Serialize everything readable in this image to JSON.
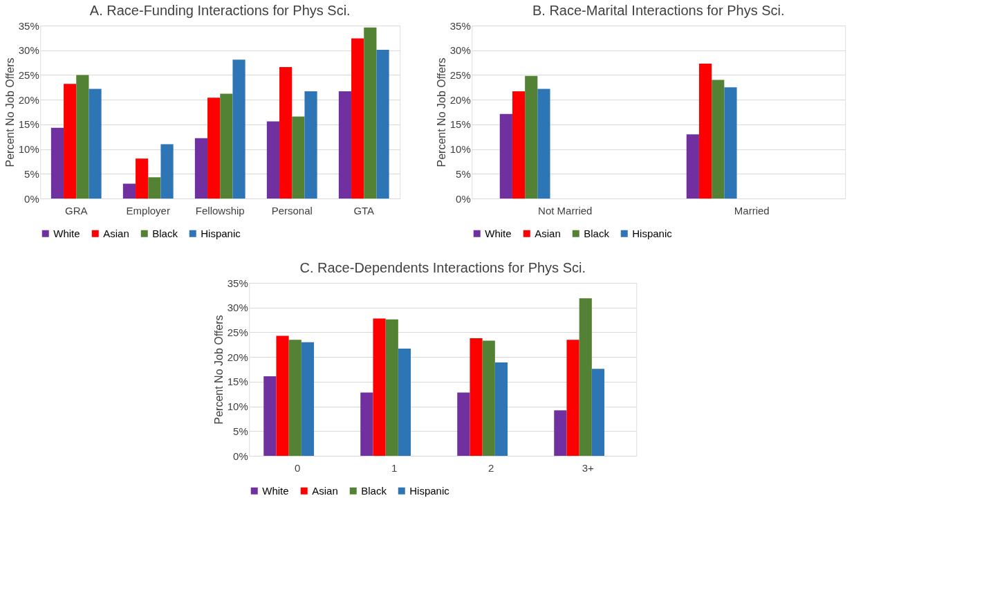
{
  "chart_data": [
    {
      "type": "bar",
      "title": "A. Race-Funding Interactions for Phys Sci.",
      "ylabel": "Percent No Job Offers",
      "categories": [
        "GRA",
        "Employer",
        "Fellowship",
        "Personal",
        "GTA"
      ],
      "series": [
        {
          "name": "White",
          "color": "#7030a0",
          "values": [
            14.3,
            3.0,
            12.2,
            15.6,
            21.7
          ]
        },
        {
          "name": "Asian",
          "color": "#ff0000",
          "values": [
            23.2,
            8.1,
            20.4,
            26.6,
            32.4
          ]
        },
        {
          "name": "Black",
          "color": "#548235",
          "values": [
            25.0,
            4.3,
            21.2,
            16.6,
            34.6
          ]
        },
        {
          "name": "Hispanic",
          "color": "#2e75b6",
          "values": [
            22.2,
            11.0,
            28.1,
            21.7,
            30.1
          ]
        }
      ],
      "ylim": [
        0,
        35
      ],
      "yticks": [
        {
          "value": 0,
          "label": "0%"
        },
        {
          "value": 5,
          "label": "5%"
        },
        {
          "value": 10,
          "label": "10%"
        },
        {
          "value": 15,
          "label": "15%"
        },
        {
          "value": 20,
          "label": "20%"
        },
        {
          "value": 25,
          "label": "25%"
        },
        {
          "value": 30,
          "label": "30%"
        },
        {
          "value": 35,
          "label": "35%"
        }
      ],
      "grid": "y",
      "legend": "bottom"
    },
    {
      "type": "bar",
      "title": "B. Race-Marital Interactions for Phys Sci.",
      "ylabel": "Percent No Job Offers",
      "categories": [
        "Not Married",
        "Married"
      ],
      "series": [
        {
          "name": "White",
          "color": "#7030a0",
          "values": [
            17.1,
            13.0
          ]
        },
        {
          "name": "Asian",
          "color": "#ff0000",
          "values": [
            21.7,
            27.3
          ]
        },
        {
          "name": "Black",
          "color": "#548235",
          "values": [
            24.8,
            24.0
          ]
        },
        {
          "name": "Hispanic",
          "color": "#2e75b6",
          "values": [
            22.2,
            22.5
          ]
        }
      ],
      "ylim": [
        0,
        35
      ],
      "yticks": [
        {
          "value": 0,
          "label": "0%"
        },
        {
          "value": 5,
          "label": "5%"
        },
        {
          "value": 10,
          "label": "10%"
        },
        {
          "value": 15,
          "label": "15%"
        },
        {
          "value": 20,
          "label": "20%"
        },
        {
          "value": 25,
          "label": "25%"
        },
        {
          "value": 30,
          "label": "30%"
        },
        {
          "value": 35,
          "label": "35%"
        }
      ],
      "grid": "y",
      "legend": "bottom"
    },
    {
      "type": "bar",
      "title": "C. Race-Dependents Interactions for Phys Sci.",
      "ylabel": "Percent No Job Offers",
      "categories": [
        "0",
        "1",
        "2",
        "3+"
      ],
      "series": [
        {
          "name": "White",
          "color": "#7030a0",
          "values": [
            16.1,
            12.8,
            12.8,
            9.2
          ]
        },
        {
          "name": "Asian",
          "color": "#ff0000",
          "values": [
            24.3,
            27.8,
            23.8,
            23.5
          ]
        },
        {
          "name": "Black",
          "color": "#548235",
          "values": [
            23.5,
            27.6,
            23.3,
            31.9
          ]
        },
        {
          "name": "Hispanic",
          "color": "#2e75b6",
          "values": [
            23.0,
            21.7,
            18.9,
            17.6
          ]
        }
      ],
      "ylim": [
        0,
        35
      ],
      "yticks": [
        {
          "value": 0,
          "label": "0%"
        },
        {
          "value": 5,
          "label": "5%"
        },
        {
          "value": 10,
          "label": "10%"
        },
        {
          "value": 15,
          "label": "15%"
        },
        {
          "value": 20,
          "label": "20%"
        },
        {
          "value": 25,
          "label": "25%"
        },
        {
          "value": 30,
          "label": "30%"
        },
        {
          "value": 35,
          "label": "35%"
        }
      ],
      "grid": "y",
      "legend": "bottom"
    }
  ]
}
